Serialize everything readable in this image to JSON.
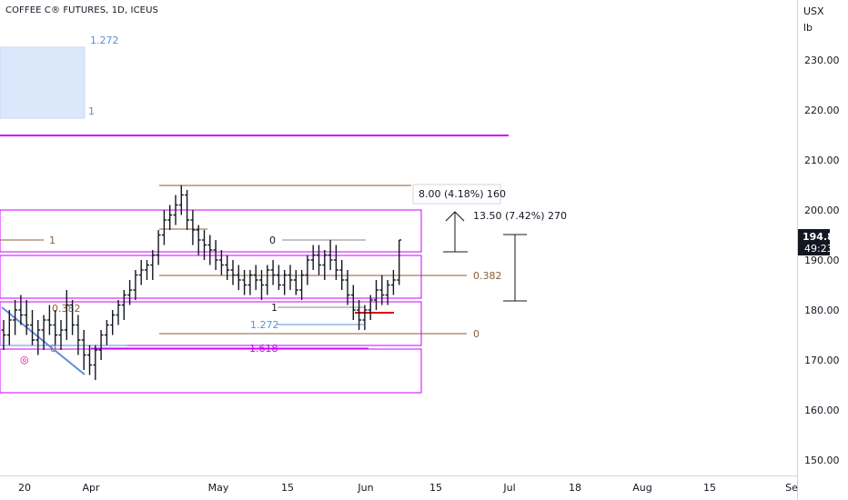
{
  "header": {
    "title": "COFFEE C® FUTURES, 1D, ICEUS"
  },
  "price_scale": {
    "unit_currency": "USX",
    "unit_measure": "lb",
    "ticks": [
      "230.00",
      "220.00",
      "210.00",
      "200.00",
      "190.00",
      "180.00",
      "170.00",
      "160.00",
      "150.00"
    ],
    "last_price": "194.85",
    "countdown": "49:23"
  },
  "time_scale": {
    "ticks": [
      "20",
      "Apr",
      "May",
      "15",
      "Jun",
      "15",
      "Jul",
      "18",
      "Aug",
      "15",
      "Se"
    ]
  },
  "annotations": {
    "box_top_level_upper": "1.272",
    "box_top_level_lower": "1",
    "fib_left_1": "1",
    "fib_left_0382": "0.382",
    "fib_left_0": "0",
    "fib_right_0": "0",
    "fib_right_0382": "0.382",
    "fib_right_0_low": "0",
    "fib_right_1": "1",
    "ext_1272": "1.272",
    "ext_1618": "1.618",
    "measure_top": "8.00 (4.18%) 160",
    "measure_mid": "13.50 (7.42%) 270",
    "marker": "◎"
  },
  "colors": {
    "up": "#131722",
    "fib": "#8b5e34",
    "magenta": "#cc00ff",
    "blue_box": "#dbe8fb",
    "blue_line": "#5b8fd8",
    "red": "#e00000",
    "pink": "#e0007a",
    "last_bg": "#131722"
  },
  "chart_data": {
    "type": "ohlc",
    "title": "COFFEE C® FUTURES, 1D, ICEUS",
    "ylabel": "USX/lb",
    "ylim": [
      145,
      237
    ],
    "ohlc": [
      [
        176,
        178,
        172,
        175
      ],
      [
        175,
        180,
        173,
        178
      ],
      [
        178,
        182,
        175,
        180
      ],
      [
        180,
        183,
        177,
        179
      ],
      [
        179,
        182,
        175,
        177
      ],
      [
        177,
        180,
        173,
        174
      ],
      [
        174,
        178,
        171,
        176
      ],
      [
        176,
        179,
        172,
        178
      ],
      [
        178,
        181,
        175,
        177
      ],
      [
        177,
        180,
        173,
        175
      ],
      [
        175,
        178,
        172,
        176
      ],
      [
        176,
        184,
        174,
        181
      ],
      [
        181,
        182,
        175,
        177
      ],
      [
        177,
        179,
        171,
        174
      ],
      [
        174,
        176,
        168,
        171
      ],
      [
        171,
        173,
        167,
        169
      ],
      [
        169,
        173,
        166,
        172
      ],
      [
        172,
        176,
        170,
        175
      ],
      [
        175,
        178,
        173,
        177
      ],
      [
        177,
        180,
        175,
        179
      ],
      [
        179,
        182,
        177,
        181
      ],
      [
        181,
        184,
        178,
        183
      ],
      [
        183,
        186,
        181,
        184
      ],
      [
        184,
        188,
        182,
        187
      ],
      [
        187,
        190,
        185,
        188
      ],
      [
        188,
        190,
        186,
        189
      ],
      [
        189,
        192,
        186,
        191
      ],
      [
        191,
        196,
        189,
        195
      ],
      [
        195,
        200,
        193,
        198
      ],
      [
        198,
        201,
        196,
        199
      ],
      [
        199,
        203,
        197,
        201
      ],
      [
        201,
        205,
        199,
        203
      ],
      [
        203,
        204,
        196,
        198
      ],
      [
        198,
        200,
        193,
        196
      ],
      [
        196,
        197,
        191,
        194
      ],
      [
        194,
        196,
        190,
        193
      ],
      [
        193,
        195,
        189,
        192
      ],
      [
        192,
        194,
        188,
        190
      ],
      [
        190,
        192,
        187,
        189
      ],
      [
        189,
        191,
        186,
        188
      ],
      [
        188,
        190,
        185,
        187
      ],
      [
        187,
        189,
        184,
        186
      ],
      [
        186,
        188,
        183,
        185
      ],
      [
        185,
        188,
        183,
        187
      ],
      [
        187,
        189,
        184,
        186
      ],
      [
        186,
        188,
        182,
        185
      ],
      [
        185,
        189,
        183,
        188
      ],
      [
        188,
        190,
        185,
        187
      ],
      [
        187,
        189,
        184,
        185
      ],
      [
        185,
        188,
        183,
        187
      ],
      [
        187,
        189,
        184,
        186
      ],
      [
        186,
        188,
        183,
        184
      ],
      [
        184,
        188,
        182,
        187
      ],
      [
        187,
        191,
        185,
        190
      ],
      [
        190,
        193,
        188,
        191
      ],
      [
        191,
        193,
        187,
        189
      ],
      [
        189,
        192,
        186,
        191
      ],
      [
        191,
        194,
        188,
        190
      ],
      [
        190,
        193,
        186,
        188
      ],
      [
        188,
        190,
        184,
        186
      ],
      [
        186,
        188,
        181,
        183
      ],
      [
        183,
        185,
        178,
        180
      ],
      [
        180,
        182,
        176,
        178
      ],
      [
        178,
        181,
        176,
        180
      ],
      [
        180,
        183,
        178,
        182
      ],
      [
        182,
        186,
        180,
        184
      ],
      [
        184,
        187,
        181,
        183
      ],
      [
        183,
        186,
        181,
        185
      ],
      [
        185,
        188,
        183,
        186
      ],
      [
        186,
        194,
        185,
        194
      ]
    ]
  }
}
